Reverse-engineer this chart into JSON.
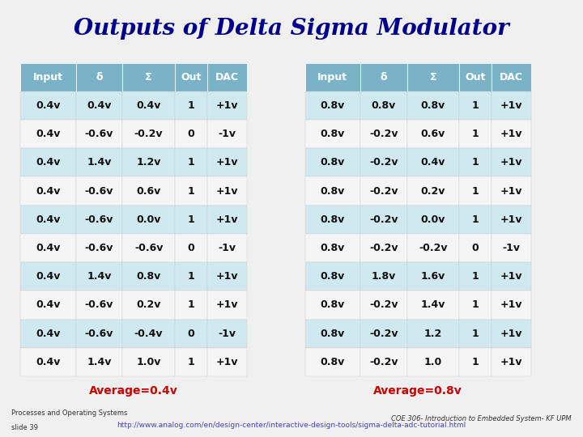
{
  "title": "Outputs of Delta Sigma Modulator",
  "title_color": "#00008B",
  "title_bg": "#c8c8e8",
  "bg_color": "#f0f0f0",
  "main_bg": "#f5f5f5",
  "header_bg": "#7ab3c8",
  "header_text_color": "#ffffff",
  "row_bg_odd": "#d0e8f0",
  "row_bg_even": "#f5f5f5",
  "table1_headers": [
    "Input",
    "δ",
    "Σ",
    "Out",
    "DAC"
  ],
  "table2_headers": [
    "Input",
    "δ",
    "Σ",
    "Out",
    "DAC"
  ],
  "table1_data": [
    [
      "0.4v",
      "0.4v",
      "0.4v",
      "1",
      "+1v"
    ],
    [
      "0.4v",
      "-0.6v",
      "-0.2v",
      "0",
      "-1v"
    ],
    [
      "0.4v",
      "1.4v",
      "1.2v",
      "1",
      "+1v"
    ],
    [
      "0.4v",
      "-0.6v",
      "0.6v",
      "1",
      "+1v"
    ],
    [
      "0.4v",
      "-0.6v",
      "0.0v",
      "1",
      "+1v"
    ],
    [
      "0.4v",
      "-0.6v",
      "-0.6v",
      "0",
      "-1v"
    ],
    [
      "0.4v",
      "1.4v",
      "0.8v",
      "1",
      "+1v"
    ],
    [
      "0.4v",
      "-0.6v",
      "0.2v",
      "1",
      "+1v"
    ],
    [
      "0.4v",
      "-0.6v",
      "-0.4v",
      "0",
      "-1v"
    ],
    [
      "0.4v",
      "1.4v",
      "1.0v",
      "1",
      "+1v"
    ]
  ],
  "table2_data": [
    [
      "0.8v",
      "0.8v",
      "0.8v",
      "1",
      "+1v"
    ],
    [
      "0.8v",
      "-0.2v",
      "0.6v",
      "1",
      "+1v"
    ],
    [
      "0.8v",
      "-0.2v",
      "0.4v",
      "1",
      "+1v"
    ],
    [
      "0.8v",
      "-0.2v",
      "0.2v",
      "1",
      "+1v"
    ],
    [
      "0.8v",
      "-0.2v",
      "0.0v",
      "1",
      "+1v"
    ],
    [
      "0.8v",
      "-0.2v",
      "-0.2v",
      "0",
      "-1v"
    ],
    [
      "0.8v",
      "1.8v",
      "1.6v",
      "1",
      "+1v"
    ],
    [
      "0.8v",
      "-0.2v",
      "1.4v",
      "1",
      "+1v"
    ],
    [
      "0.8v",
      "-0.2v",
      "1.2",
      "1",
      "+1v"
    ],
    [
      "0.8v",
      "-0.2v",
      "1.0",
      "1",
      "+1v"
    ]
  ],
  "avg1_text": "Average=0.4v",
  "avg2_text": "Average=0.8v",
  "avg_color": "#cc0000",
  "url_text": "http://www.analog.com/en/design-center/interactive-design-tools/sigma-delta-adc-tutorial.html",
  "url_color": "#4444bb",
  "footer_left1": "Processes and Operating Systems",
  "footer_left2": "slide 39",
  "footer_right": "COE 306- Introduction to Embedded System- KF UPM",
  "footer_bg": "#ffffcc",
  "data_font_size": 9,
  "header_font_size": 9,
  "title_fontsize": 20
}
